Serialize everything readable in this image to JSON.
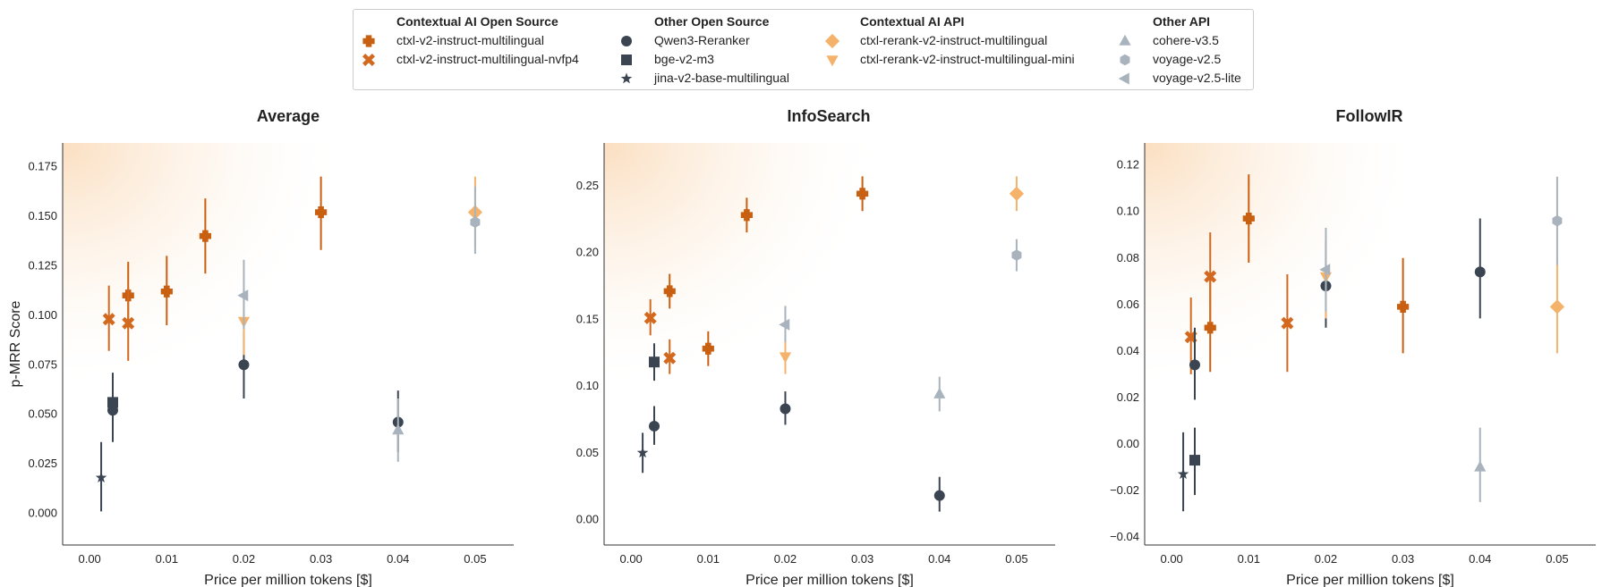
{
  "legend": {
    "groups": [
      {
        "title": "Contextual AI Open Source",
        "items": [
          {
            "label": "ctxl-v2-instruct-multilingual",
            "marker": "plus",
            "color": "#c95f10"
          },
          {
            "label": "ctxl-v2-instruct-multilingual-nvfp4",
            "marker": "x",
            "color": "#d2691e"
          }
        ]
      },
      {
        "title": "Other Open Source",
        "items": [
          {
            "label": "Qwen3-Reranker",
            "marker": "circle",
            "color": "#3b4552"
          },
          {
            "label": "bge-v2-m3",
            "marker": "square",
            "color": "#3b4552"
          },
          {
            "label": "jina-v2-base-multilingual",
            "marker": "star",
            "color": "#3b4552"
          }
        ]
      },
      {
        "title": "Contextual AI API",
        "items": [
          {
            "label": "ctxl-rerank-v2-instruct-multilingual",
            "marker": "diamond",
            "color": "#f4b26b"
          },
          {
            "label": "ctxl-rerank-v2-instruct-multilingual-mini",
            "marker": "triangle-down",
            "color": "#f4b26b"
          }
        ]
      },
      {
        "title": "Other API",
        "items": [
          {
            "label": "cohere-v3.5",
            "marker": "triangle-up",
            "color": "#a8b3bd"
          },
          {
            "label": "voyage-v2.5",
            "marker": "hexagon",
            "color": "#a8b3bd"
          },
          {
            "label": "voyage-v2.5-lite",
            "marker": "triangle-left",
            "color": "#a8b3bd"
          }
        ]
      }
    ]
  },
  "chart_data": [
    {
      "type": "scatter",
      "title": "Average",
      "xlabel": "Price per million tokens [$]",
      "ylabel": "p-MRR Score",
      "xlim": [
        -0.0035,
        0.055
      ],
      "ylim": [
        -0.016,
        0.187
      ],
      "xticks": [
        0.0,
        0.01,
        0.02,
        0.03,
        0.04,
        0.05
      ],
      "xtick_labels": [
        "0.00",
        "0.01",
        "0.02",
        "0.03",
        "0.04",
        "0.05"
      ],
      "yticks": [
        0.0,
        0.025,
        0.05,
        0.075,
        0.1,
        0.125,
        0.15,
        0.175
      ],
      "ytick_labels": [
        "0.000",
        "0.025",
        "0.050",
        "0.075",
        "0.100",
        "0.125",
        "0.150",
        "0.175"
      ],
      "points": [
        {
          "model": "ctxl-v2-instruct-multilingual",
          "marker": "plus",
          "color": "#c95f10",
          "x": 0.005,
          "y": 0.11,
          "lo": 0.093,
          "hi": 0.127
        },
        {
          "model": "ctxl-v2-instruct-multilingual",
          "marker": "plus",
          "color": "#c95f10",
          "x": 0.01,
          "y": 0.112,
          "lo": 0.095,
          "hi": 0.13
        },
        {
          "model": "ctxl-v2-instruct-multilingual",
          "marker": "plus",
          "color": "#c95f10",
          "x": 0.015,
          "y": 0.14,
          "lo": 0.121,
          "hi": 0.159
        },
        {
          "model": "ctxl-v2-instruct-multilingual",
          "marker": "plus",
          "color": "#c95f10",
          "x": 0.03,
          "y": 0.152,
          "lo": 0.133,
          "hi": 0.17
        },
        {
          "model": "ctxl-v2-instruct-multilingual-nvfp4",
          "marker": "x",
          "color": "#d2691e",
          "x": 0.0025,
          "y": 0.098,
          "lo": 0.082,
          "hi": 0.115
        },
        {
          "model": "ctxl-v2-instruct-multilingual-nvfp4",
          "marker": "x",
          "color": "#d2691e",
          "x": 0.005,
          "y": 0.096,
          "lo": 0.077,
          "hi": 0.114
        },
        {
          "model": "Qwen3-Reranker",
          "marker": "circle",
          "color": "#3b4552",
          "x": 0.003,
          "y": 0.052,
          "lo": 0.036,
          "hi": 0.068
        },
        {
          "model": "Qwen3-Reranker",
          "marker": "circle",
          "color": "#3b4552",
          "x": 0.02,
          "y": 0.075,
          "lo": 0.058,
          "hi": 0.092
        },
        {
          "model": "Qwen3-Reranker",
          "marker": "circle",
          "color": "#3b4552",
          "x": 0.04,
          "y": 0.046,
          "lo": 0.031,
          "hi": 0.062
        },
        {
          "model": "bge-v2-m3",
          "marker": "square",
          "color": "#3b4552",
          "x": 0.003,
          "y": 0.056,
          "lo": 0.04,
          "hi": 0.071
        },
        {
          "model": "jina-v2-base-multilingual",
          "marker": "star",
          "color": "#3b4552",
          "x": 0.0015,
          "y": 0.018,
          "lo": 0.001,
          "hi": 0.036
        },
        {
          "model": "ctxl-rerank-v2-instruct-multilingual",
          "marker": "diamond",
          "color": "#f4b26b",
          "x": 0.05,
          "y": 0.152,
          "lo": 0.134,
          "hi": 0.17
        },
        {
          "model": "ctxl-rerank-v2-instruct-multilingual-mini",
          "marker": "triangle-down",
          "color": "#f4b26b",
          "x": 0.02,
          "y": 0.097,
          "lo": 0.08,
          "hi": 0.113
        },
        {
          "model": "cohere-v3.5",
          "marker": "triangle-up",
          "color": "#a8b3bd",
          "x": 0.04,
          "y": 0.042,
          "lo": 0.026,
          "hi": 0.058
        },
        {
          "model": "voyage-v2.5",
          "marker": "hexagon",
          "color": "#a8b3bd",
          "x": 0.05,
          "y": 0.147,
          "lo": 0.131,
          "hi": 0.165
        },
        {
          "model": "voyage-v2.5-lite",
          "marker": "triangle-left",
          "color": "#a8b3bd",
          "x": 0.02,
          "y": 0.11,
          "lo": 0.093,
          "hi": 0.128
        }
      ]
    },
    {
      "type": "scatter",
      "title": "InfoSearch",
      "xlabel": "Price per million tokens [$]",
      "ylabel": "",
      "xlim": [
        -0.0035,
        0.055
      ],
      "ylim": [
        -0.019,
        0.282
      ],
      "xticks": [
        0.0,
        0.01,
        0.02,
        0.03,
        0.04,
        0.05
      ],
      "xtick_labels": [
        "0.00",
        "0.01",
        "0.02",
        "0.03",
        "0.04",
        "0.05"
      ],
      "yticks": [
        0.0,
        0.05,
        0.1,
        0.15,
        0.2,
        0.25
      ],
      "ytick_labels": [
        "0.00",
        "0.05",
        "0.10",
        "0.15",
        "0.20",
        "0.25"
      ],
      "points": [
        {
          "model": "ctxl-v2-instruct-multilingual",
          "marker": "plus",
          "color": "#c95f10",
          "x": 0.005,
          "y": 0.171,
          "lo": 0.158,
          "hi": 0.184
        },
        {
          "model": "ctxl-v2-instruct-multilingual",
          "marker": "plus",
          "color": "#c95f10",
          "x": 0.01,
          "y": 0.128,
          "lo": 0.115,
          "hi": 0.141
        },
        {
          "model": "ctxl-v2-instruct-multilingual",
          "marker": "plus",
          "color": "#c95f10",
          "x": 0.015,
          "y": 0.228,
          "lo": 0.215,
          "hi": 0.241
        },
        {
          "model": "ctxl-v2-instruct-multilingual",
          "marker": "plus",
          "color": "#c95f10",
          "x": 0.03,
          "y": 0.244,
          "lo": 0.231,
          "hi": 0.257
        },
        {
          "model": "ctxl-v2-instruct-multilingual-nvfp4",
          "marker": "x",
          "color": "#d2691e",
          "x": 0.0025,
          "y": 0.151,
          "lo": 0.138,
          "hi": 0.165
        },
        {
          "model": "ctxl-v2-instruct-multilingual-nvfp4",
          "marker": "x",
          "color": "#d2691e",
          "x": 0.005,
          "y": 0.121,
          "lo": 0.109,
          "hi": 0.135
        },
        {
          "model": "Qwen3-Reranker",
          "marker": "circle",
          "color": "#3b4552",
          "x": 0.003,
          "y": 0.07,
          "lo": 0.056,
          "hi": 0.085
        },
        {
          "model": "Qwen3-Reranker",
          "marker": "circle",
          "color": "#3b4552",
          "x": 0.02,
          "y": 0.083,
          "lo": 0.071,
          "hi": 0.096
        },
        {
          "model": "Qwen3-Reranker",
          "marker": "circle",
          "color": "#3b4552",
          "x": 0.04,
          "y": 0.018,
          "lo": 0.006,
          "hi": 0.032
        },
        {
          "model": "bge-v2-m3",
          "marker": "square",
          "color": "#3b4552",
          "x": 0.003,
          "y": 0.118,
          "lo": 0.104,
          "hi": 0.132
        },
        {
          "model": "jina-v2-base-multilingual",
          "marker": "star",
          "color": "#3b4552",
          "x": 0.0015,
          "y": 0.05,
          "lo": 0.035,
          "hi": 0.065
        },
        {
          "model": "ctxl-rerank-v2-instruct-multilingual",
          "marker": "diamond",
          "color": "#f4b26b",
          "x": 0.05,
          "y": 0.244,
          "lo": 0.231,
          "hi": 0.257
        },
        {
          "model": "ctxl-rerank-v2-instruct-multilingual-mini",
          "marker": "triangle-down",
          "color": "#f4b26b",
          "x": 0.02,
          "y": 0.122,
          "lo": 0.109,
          "hi": 0.135
        },
        {
          "model": "cohere-v3.5",
          "marker": "triangle-up",
          "color": "#a8b3bd",
          "x": 0.04,
          "y": 0.094,
          "lo": 0.081,
          "hi": 0.107
        },
        {
          "model": "voyage-v2.5",
          "marker": "hexagon",
          "color": "#a8b3bd",
          "x": 0.05,
          "y": 0.198,
          "lo": 0.186,
          "hi": 0.21
        },
        {
          "model": "voyage-v2.5-lite",
          "marker": "triangle-left",
          "color": "#a8b3bd",
          "x": 0.02,
          "y": 0.146,
          "lo": 0.133,
          "hi": 0.16
        }
      ]
    },
    {
      "type": "scatter",
      "title": "FollowIR",
      "xlabel": "Price per million tokens [$]",
      "ylabel": "",
      "xlim": [
        -0.0035,
        0.055
      ],
      "ylim": [
        -0.0435,
        0.1295
      ],
      "xticks": [
        0.0,
        0.01,
        0.02,
        0.03,
        0.04,
        0.05
      ],
      "xtick_labels": [
        "0.00",
        "0.01",
        "0.02",
        "0.03",
        "0.04",
        "0.05"
      ],
      "yticks": [
        -0.04,
        -0.02,
        0.0,
        0.02,
        0.04,
        0.06,
        0.08,
        0.1,
        0.12
      ],
      "ytick_labels": [
        "−0.04",
        "−0.02",
        "0.00",
        "0.02",
        "0.04",
        "0.06",
        "0.08",
        "0.10",
        "0.12"
      ],
      "points": [
        {
          "model": "ctxl-v2-instruct-multilingual",
          "marker": "plus",
          "color": "#c95f10",
          "x": 0.005,
          "y": 0.05,
          "lo": 0.031,
          "hi": 0.071
        },
        {
          "model": "ctxl-v2-instruct-multilingual",
          "marker": "plus",
          "color": "#c95f10",
          "x": 0.01,
          "y": 0.097,
          "lo": 0.078,
          "hi": 0.116
        },
        {
          "model": "ctxl-v2-instruct-multilingual",
          "marker": "plus",
          "color": "#c95f10",
          "x": 0.03,
          "y": 0.059,
          "lo": 0.039,
          "hi": 0.08
        },
        {
          "model": "ctxl-v2-instruct-multilingual-nvfp4",
          "marker": "x",
          "color": "#d2691e",
          "x": 0.0025,
          "y": 0.046,
          "lo": 0.03,
          "hi": 0.063
        },
        {
          "model": "ctxl-v2-instruct-multilingual-nvfp4",
          "marker": "x",
          "color": "#d2691e",
          "x": 0.005,
          "y": 0.072,
          "lo": 0.052,
          "hi": 0.091
        },
        {
          "model": "ctxl-v2-instruct-multilingual-nvfp4",
          "marker": "x",
          "color": "#d2691e",
          "x": 0.015,
          "y": 0.052,
          "lo": 0.031,
          "hi": 0.073
        },
        {
          "model": "Qwen3-Reranker",
          "marker": "circle",
          "color": "#3b4552",
          "x": 0.003,
          "y": 0.034,
          "lo": 0.019,
          "hi": 0.05
        },
        {
          "model": "Qwen3-Reranker",
          "marker": "circle",
          "color": "#3b4552",
          "x": 0.02,
          "y": 0.068,
          "lo": 0.05,
          "hi": 0.087
        },
        {
          "model": "Qwen3-Reranker",
          "marker": "circle",
          "color": "#3b4552",
          "x": 0.04,
          "y": 0.074,
          "lo": 0.054,
          "hi": 0.097
        },
        {
          "model": "bge-v2-m3",
          "marker": "square",
          "color": "#3b4552",
          "x": 0.003,
          "y": -0.007,
          "lo": -0.022,
          "hi": 0.007
        },
        {
          "model": "jina-v2-base-multilingual",
          "marker": "star",
          "color": "#3b4552",
          "x": 0.0015,
          "y": -0.013,
          "lo": -0.029,
          "hi": 0.005
        },
        {
          "model": "ctxl-rerank-v2-instruct-multilingual",
          "marker": "diamond",
          "color": "#f4b26b",
          "x": 0.05,
          "y": 0.059,
          "lo": 0.039,
          "hi": 0.08
        },
        {
          "model": "ctxl-rerank-v2-instruct-multilingual-mini",
          "marker": "triangle-down",
          "color": "#f4b26b",
          "x": 0.02,
          "y": 0.072,
          "lo": 0.054,
          "hi": 0.09
        },
        {
          "model": "cohere-v3.5",
          "marker": "triangle-up",
          "color": "#a8b3bd",
          "x": 0.04,
          "y": -0.01,
          "lo": -0.025,
          "hi": 0.007
        },
        {
          "model": "voyage-v2.5",
          "marker": "hexagon",
          "color": "#a8b3bd",
          "x": 0.05,
          "y": 0.096,
          "lo": 0.077,
          "hi": 0.115
        },
        {
          "model": "voyage-v2.5-lite",
          "marker": "triangle-left",
          "color": "#a8b3bd",
          "x": 0.02,
          "y": 0.075,
          "lo": 0.057,
          "hi": 0.093
        }
      ]
    }
  ]
}
